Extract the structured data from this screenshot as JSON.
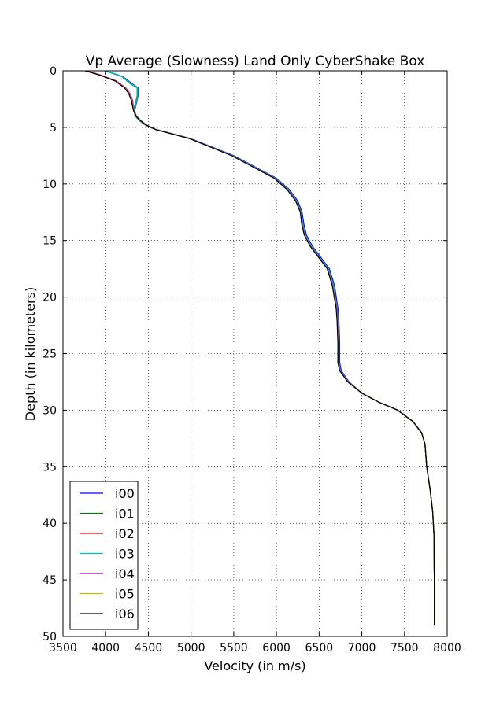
{
  "chart_data": {
    "type": "line",
    "title": "Vp Average (Slowness) Land Only CyberShake Box",
    "xlabel": "Velocity (in m/s)",
    "ylabel": "Depth (in kilometers)",
    "xlim": [
      3500,
      8000
    ],
    "ylim": [
      0,
      50
    ],
    "y_inverted": true,
    "x_ticks": [
      "3500",
      "4000",
      "4500",
      "5000",
      "5500",
      "6000",
      "6500",
      "7000",
      "7500",
      "8000"
    ],
    "y_ticks": [
      "0",
      "5",
      "10",
      "15",
      "20",
      "25",
      "30",
      "35",
      "40",
      "45",
      "50"
    ],
    "grid": true,
    "legend_position": "lower-left",
    "series": [
      {
        "name": "i00",
        "color": "#0000ff",
        "x": [
          4000,
          4200,
          4300,
          4380,
          4380,
          4340,
          4350,
          4400,
          4470,
          4600,
          5000,
          5500,
          6000,
          6150,
          6250,
          6300,
          6320,
          6350,
          6420,
          6520,
          6620,
          6680,
          6720,
          6730,
          6740,
          6740,
          6760,
          6850,
          7000,
          7200,
          7420,
          7600,
          7700,
          7740,
          7760,
          7800,
          7830,
          7845,
          7850,
          7850
        ],
        "y": [
          0,
          0.5,
          1.1,
          1.5,
          2.2,
          3.5,
          4.0,
          4.4,
          4.8,
          5.2,
          6.0,
          7.5,
          9.5,
          10.5,
          11.5,
          12.5,
          13.5,
          14.5,
          15.5,
          16.5,
          17.5,
          19.0,
          21.0,
          22.0,
          24.0,
          25.8,
          26.5,
          27.5,
          28.5,
          29.3,
          30.0,
          31.0,
          32.0,
          33.0,
          35.0,
          37.0,
          39.0,
          41.0,
          45.0,
          49.0
        ]
      },
      {
        "name": "i01",
        "color": "#008000",
        "x": [
          3990,
          4190,
          4280,
          4370,
          4370,
          4330,
          4345,
          4395,
          4465,
          4590,
          4990,
          5480,
          5980,
          6130,
          6230,
          6285,
          6300,
          6330,
          6400,
          6500,
          6600,
          6660,
          6705,
          6715,
          6725,
          6725,
          6745,
          6840,
          7000,
          7200,
          7420,
          7600,
          7700,
          7740,
          7760,
          7800,
          7830,
          7845,
          7850,
          7850
        ],
        "y": [
          0,
          0.5,
          1.1,
          1.5,
          2.2,
          3.5,
          4.0,
          4.4,
          4.8,
          5.2,
          6.0,
          7.5,
          9.5,
          10.5,
          11.5,
          12.5,
          13.5,
          14.5,
          15.5,
          16.5,
          17.5,
          19.0,
          21.0,
          22.0,
          24.0,
          25.8,
          26.5,
          27.5,
          28.5,
          29.3,
          30.0,
          31.0,
          32.0,
          33.0,
          35.0,
          37.0,
          39.0,
          41.0,
          45.0,
          49.0
        ]
      },
      {
        "name": "i02",
        "color": "#ff0000",
        "x": [
          3780,
          3950,
          4120,
          4230,
          4280,
          4310,
          4330,
          4360,
          4410,
          4480,
          4590,
          4990,
          5480,
          5980,
          6130,
          6230,
          6285,
          6300,
          6330,
          6400,
          6500,
          6600,
          6660,
          6705,
          6715,
          6725,
          6725,
          6745,
          6840,
          7000,
          7200,
          7420,
          7600,
          7700,
          7740,
          7760,
          7800,
          7830,
          7845,
          7850,
          7850
        ],
        "y": [
          0,
          0.4,
          0.9,
          1.5,
          2.0,
          2.6,
          3.5,
          4.0,
          4.4,
          4.8,
          5.2,
          6.0,
          7.5,
          9.5,
          10.5,
          11.5,
          12.5,
          13.5,
          14.5,
          15.5,
          16.5,
          17.5,
          19.0,
          21.0,
          22.0,
          24.0,
          25.8,
          26.5,
          27.5,
          28.5,
          29.3,
          30.0,
          31.0,
          32.0,
          33.0,
          35.0,
          37.0,
          39.0,
          41.0,
          45.0,
          49.0
        ]
      },
      {
        "name": "i03",
        "color": "#00bfbf",
        "x": [
          3995,
          4195,
          4290,
          4375,
          4375,
          4335,
          4348,
          4398,
          4468,
          4595,
          4995,
          5490,
          5990,
          6140,
          6240,
          6292,
          6310,
          6340,
          6410,
          6510,
          6610,
          6670,
          6712,
          6722,
          6732,
          6732,
          6752,
          6845,
          7000,
          7200,
          7420,
          7600,
          7700,
          7740,
          7760,
          7800,
          7830,
          7845,
          7850,
          7850
        ],
        "y": [
          0,
          0.5,
          1.1,
          1.5,
          2.2,
          3.5,
          4.0,
          4.4,
          4.8,
          5.2,
          6.0,
          7.5,
          9.5,
          10.5,
          11.5,
          12.5,
          13.5,
          14.5,
          15.5,
          16.5,
          17.5,
          19.0,
          21.0,
          22.0,
          24.0,
          25.8,
          26.5,
          27.5,
          28.5,
          29.3,
          30.0,
          31.0,
          32.0,
          33.0,
          35.0,
          37.0,
          39.0,
          41.0,
          45.0,
          49.0
        ]
      },
      {
        "name": "i04",
        "color": "#bf00bf",
        "x": [
          3785,
          3955,
          4125,
          4235,
          4285,
          4315,
          4332,
          4362,
          4412,
          4482,
          4592,
          4992,
          5482,
          5982,
          6132,
          6232,
          6287,
          6302,
          6332,
          6402,
          6502,
          6602,
          6662,
          6707,
          6717,
          6727,
          6727,
          6747,
          6842,
          7000,
          7200,
          7420,
          7600,
          7700,
          7740,
          7760,
          7800,
          7830,
          7845,
          7850,
          7850
        ],
        "y": [
          0,
          0.4,
          0.9,
          1.5,
          2.0,
          2.6,
          3.5,
          4.0,
          4.4,
          4.8,
          5.2,
          6.0,
          7.5,
          9.5,
          10.5,
          11.5,
          12.5,
          13.5,
          14.5,
          15.5,
          16.5,
          17.5,
          19.0,
          21.0,
          22.0,
          24.0,
          25.8,
          26.5,
          27.5,
          28.5,
          29.3,
          30.0,
          31.0,
          32.0,
          33.0,
          35.0,
          37.0,
          39.0,
          41.0,
          45.0,
          49.0
        ]
      },
      {
        "name": "i05",
        "color": "#bfbf00",
        "x": [
          3770,
          3945,
          4115,
          4225,
          4275,
          4305,
          4328,
          4358,
          4408,
          4478,
          4588,
          4988,
          5478,
          5978,
          6128,
          6228,
          6283,
          6298,
          6328,
          6398,
          6498,
          6598,
          6658,
          6703,
          6713,
          6723,
          6723,
          6743,
          6838,
          7000,
          7200,
          7420,
          7600,
          7700,
          7740,
          7760,
          7800,
          7830,
          7845,
          7850,
          7850
        ],
        "y": [
          0,
          0.4,
          0.9,
          1.5,
          2.0,
          2.6,
          3.5,
          4.0,
          4.4,
          4.8,
          5.2,
          6.0,
          7.5,
          9.5,
          10.5,
          11.5,
          12.5,
          13.5,
          14.5,
          15.5,
          16.5,
          17.5,
          19.0,
          21.0,
          22.0,
          24.0,
          25.8,
          26.5,
          27.5,
          28.5,
          29.3,
          30.0,
          31.0,
          32.0,
          33.0,
          35.0,
          37.0,
          39.0,
          41.0,
          45.0,
          49.0
        ]
      },
      {
        "name": "i06",
        "color": "#000000",
        "x": [
          3760,
          3940,
          4110,
          4220,
          4270,
          4300,
          4325,
          4355,
          4405,
          4475,
          4585,
          4985,
          5475,
          5975,
          6125,
          6225,
          6280,
          6295,
          6325,
          6395,
          6495,
          6595,
          6655,
          6700,
          6710,
          6720,
          6720,
          6740,
          6835,
          7000,
          7200,
          7420,
          7600,
          7700,
          7740,
          7760,
          7800,
          7830,
          7845,
          7850,
          7850
        ],
        "y": [
          0,
          0.4,
          0.9,
          1.5,
          2.0,
          2.6,
          3.5,
          4.0,
          4.4,
          4.8,
          5.2,
          6.0,
          7.5,
          9.5,
          10.5,
          11.5,
          12.5,
          13.5,
          14.5,
          15.5,
          16.5,
          17.5,
          19.0,
          21.0,
          22.0,
          24.0,
          25.8,
          26.5,
          27.5,
          28.5,
          29.3,
          30.0,
          31.0,
          32.0,
          33.0,
          35.0,
          37.0,
          39.0,
          41.0,
          45.0,
          49.0
        ]
      }
    ]
  }
}
